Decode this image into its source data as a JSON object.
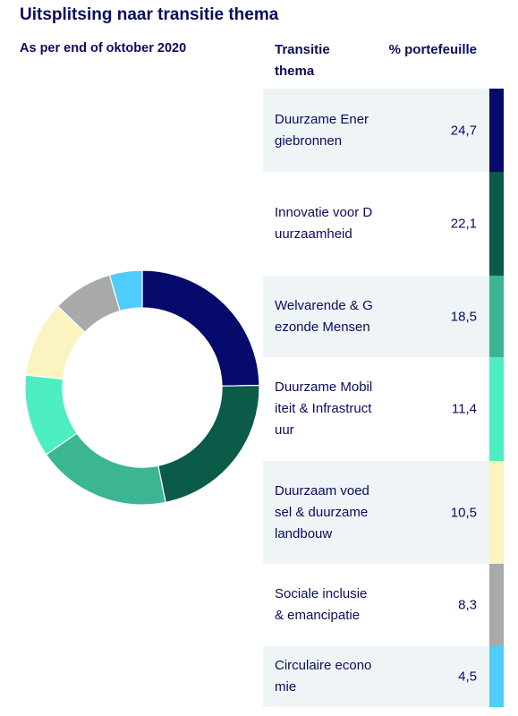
{
  "title": "Uitsplitsing naar transitie thema",
  "subtitle": "As per end of oktober 2020",
  "header": {
    "theme": "Transitie thema",
    "pct": "% portefeuille"
  },
  "chart_data": {
    "type": "pie",
    "title": "Uitsplitsing naar transitie thema",
    "subtitle": "As per end of oktober 2020",
    "categories": [
      "Duurzame Energiebronnen",
      "Innovatie voor Duurzaamheid",
      "Welvarende & Gezonde Mensen",
      "Duurzame Mobiliteit & Infrastructuur",
      "Duurzaam voedsel & duurzame landbouw",
      "Sociale inclusie & emancipatie",
      "Circulaire economie"
    ],
    "values": [
      24.7,
      22.1,
      18.5,
      11.4,
      10.5,
      8.3,
      4.5
    ],
    "value_labels": [
      "24,7",
      "22,1",
      "18,5",
      "11,4",
      "10,5",
      "8,3",
      "4,5"
    ],
    "colors": [
      "#050a6b",
      "#0c5a48",
      "#3cb593",
      "#4defc0",
      "#fbf3c0",
      "#a7a9ab",
      "#4fcdfa"
    ],
    "hole_ratio": 0.68
  }
}
